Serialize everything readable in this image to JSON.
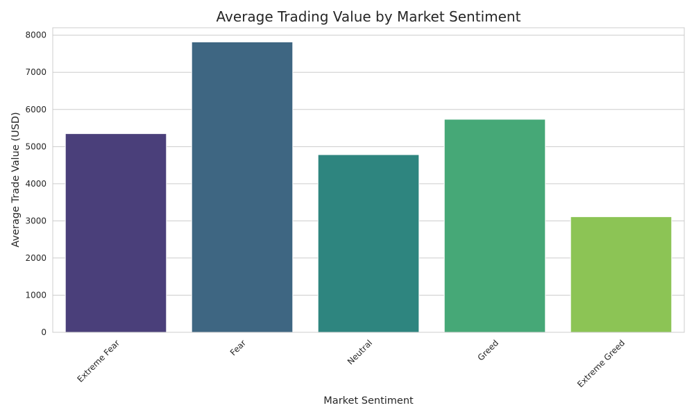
{
  "chart_data": {
    "type": "bar",
    "title": "Average Trading Value by Market Sentiment",
    "xlabel": "Market Sentiment",
    "ylabel": "Average Trade Value (USD)",
    "categories": [
      "Extreme Fear",
      "Fear",
      "Neutral",
      "Greed",
      "Extreme Greed"
    ],
    "values": [
      5349,
      7817,
      4783,
      5736,
      3112
    ],
    "colors": [
      "#4a3f7a",
      "#3e6682",
      "#2e857f",
      "#46a877",
      "#8cc455"
    ],
    "yticks": [
      0,
      1000,
      2000,
      3000,
      4000,
      5000,
      6000,
      7000,
      8000
    ],
    "ylim": [
      0,
      8200
    ],
    "grid": true,
    "legend": "none"
  }
}
